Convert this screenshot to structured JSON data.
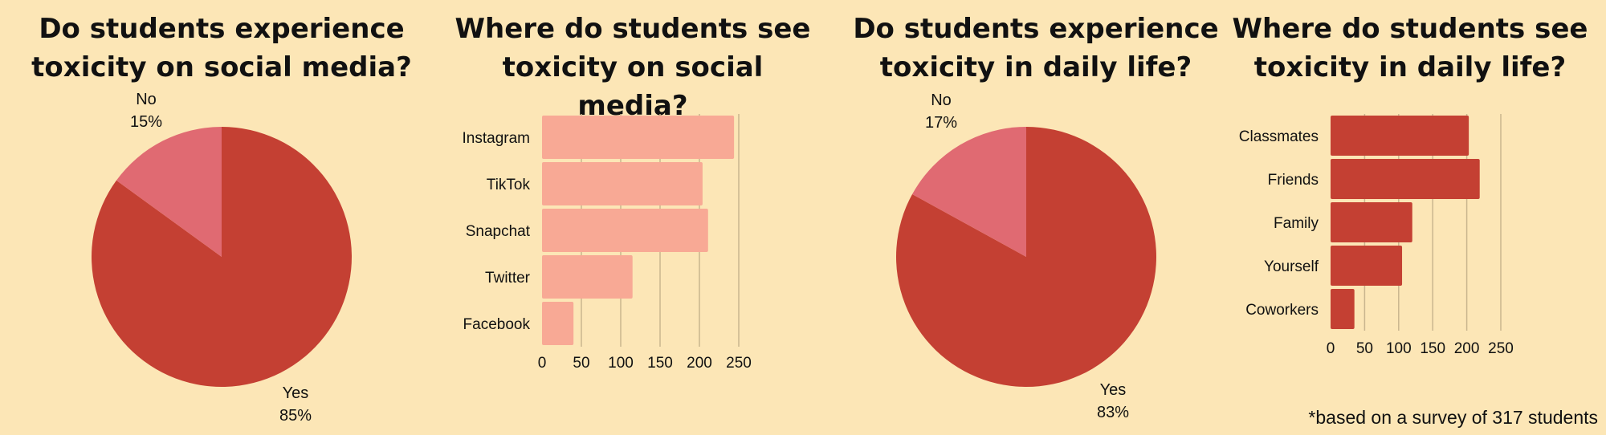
{
  "footnote": "*based on a survey of 317 students",
  "colors": {
    "background": "#fce6b6",
    "pie_yes": "#c44033",
    "pie_no": "#e06a72",
    "bar_social": "#f8a995",
    "bar_daily": "#c44033",
    "grid": "#c9b58e"
  },
  "chart_data": [
    {
      "type": "pie",
      "title": "Do students experience\ntoxicity on social media?",
      "slices": [
        {
          "label": "Yes",
          "percent_label": "85%",
          "value": 85
        },
        {
          "label": "No",
          "percent_label": "15%",
          "value": 15
        }
      ]
    },
    {
      "type": "bar",
      "orientation": "horizontal",
      "title": "Where do students see\ntoxicity on social media?",
      "categories": [
        "Instagram",
        "TikTok",
        "Snapchat",
        "Twitter",
        "Facebook"
      ],
      "values": [
        244,
        204,
        211,
        115,
        40
      ],
      "xlim": [
        0,
        250
      ],
      "xticks": [
        "0",
        "50",
        "100",
        "150",
        "200",
        "250"
      ],
      "grid": true
    },
    {
      "type": "pie",
      "title": "Do students experience\ntoxicity in daily life?",
      "slices": [
        {
          "label": "Yes",
          "percent_label": "83%",
          "value": 83
        },
        {
          "label": "No",
          "percent_label": "17%",
          "value": 17
        }
      ]
    },
    {
      "type": "bar",
      "orientation": "horizontal",
      "title": "Where do students see\ntoxicity in daily life?",
      "categories": [
        "Classmates",
        "Friends",
        "Family",
        "Yourself",
        "Coworkers"
      ],
      "values": [
        203,
        219,
        120,
        105,
        35
      ],
      "xlim": [
        0,
        250
      ],
      "xticks": [
        "0",
        "50",
        "100",
        "150",
        "200",
        "250"
      ],
      "grid": true
    }
  ]
}
